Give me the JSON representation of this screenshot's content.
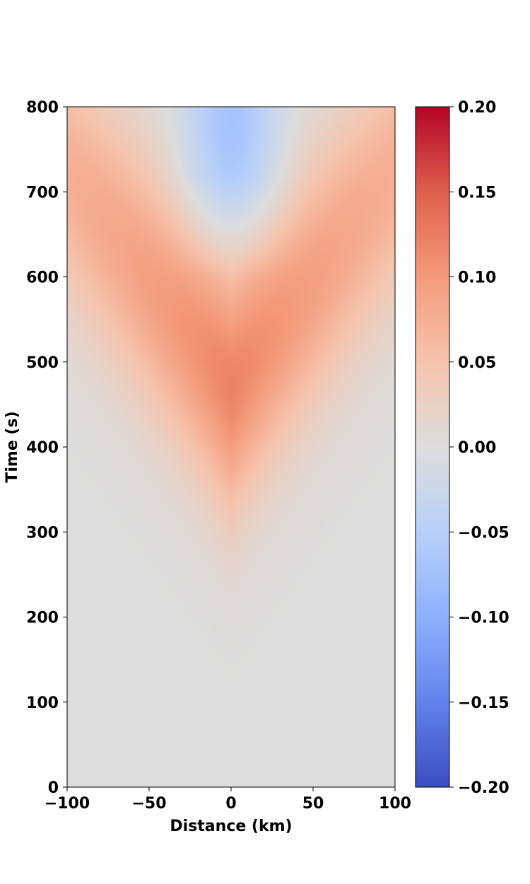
{
  "chart_data": {
    "type": "heatmap",
    "title": "",
    "xlabel": "Distance (km)",
    "ylabel": "Time (s)",
    "xlim": [
      -100,
      100
    ],
    "ylim": [
      0,
      800
    ],
    "x_ticks": [
      -100,
      -50,
      0,
      50,
      100
    ],
    "x_tick_labels": [
      "−100",
      "−50",
      "0",
      "50",
      "100"
    ],
    "y_ticks": [
      0,
      100,
      200,
      300,
      400,
      500,
      600,
      700,
      800
    ],
    "y_tick_labels": [
      "0",
      "100",
      "200",
      "300",
      "400",
      "500",
      "600",
      "700",
      "800"
    ],
    "colormap": "coolwarm",
    "colorbar": {
      "vmin": -0.2,
      "vmax": 0.2,
      "ticks": [
        -0.2,
        -0.15,
        -0.1,
        -0.05,
        0.0,
        0.05,
        0.1,
        0.15,
        0.2
      ],
      "tick_labels": [
        "−0.20",
        "−0.15",
        "−0.10",
        "−0.05",
        "0.00",
        "0.05",
        "0.10",
        "0.15",
        "0.20"
      ]
    },
    "features": [
      {
        "kind": "positive V-shaped wavefront",
        "apex_x": 0,
        "apex_time": 470,
        "peak_value": 0.09,
        "arrival_speed_km_per_s": 0.22
      },
      {
        "kind": "negative trough",
        "center_x": 0,
        "center_time": 780,
        "min_value": -0.07
      }
    ],
    "grid": false
  }
}
